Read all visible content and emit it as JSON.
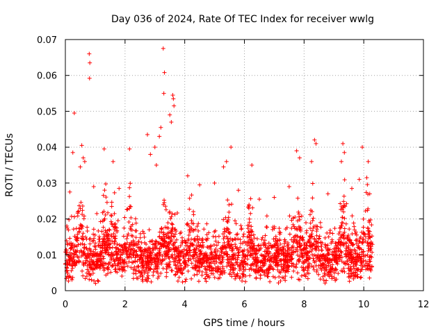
{
  "chart_data": {
    "type": "scatter",
    "title": "Day 036 of 2024, Rate Of TEC Index for receiver wwlg",
    "xlabel": "GPS time / hours",
    "ylabel": "ROTI / TECUs",
    "xlim": [
      0,
      12
    ],
    "ylim": [
      0,
      0.07
    ],
    "x_ticks": [
      "0",
      "2",
      "4",
      "6",
      "8",
      "10",
      "12"
    ],
    "y_ticks": [
      "0",
      "0.01",
      "0.02",
      "0.03",
      "0.04",
      "0.05",
      "0.06",
      "0.07"
    ],
    "grid": true,
    "marker": "+",
    "series": [
      {
        "name": "ROTI",
        "color": "#ff0000",
        "points": [
          [
            0.8,
            0.066
          ],
          [
            0.82,
            0.0635
          ],
          [
            0.81,
            0.0592
          ],
          [
            0.3,
            0.0495
          ],
          [
            3.28,
            0.0675
          ],
          [
            3.32,
            0.0608
          ],
          [
            3.3,
            0.055
          ],
          [
            3.6,
            0.0545
          ],
          [
            3.62,
            0.0535
          ],
          [
            3.64,
            0.0515
          ],
          [
            3.5,
            0.049
          ],
          [
            3.55,
            0.047
          ],
          [
            3.2,
            0.0455
          ],
          [
            3.15,
            0.043
          ],
          [
            2.75,
            0.0435
          ],
          [
            3.0,
            0.04
          ],
          [
            0.55,
            0.0405
          ],
          [
            0.6,
            0.037
          ],
          [
            0.65,
            0.036
          ],
          [
            0.5,
            0.0345
          ],
          [
            0.25,
            0.0385
          ],
          [
            1.3,
            0.0395
          ],
          [
            1.6,
            0.036
          ],
          [
            2.15,
            0.0395
          ],
          [
            5.55,
            0.04
          ],
          [
            5.4,
            0.036
          ],
          [
            5.3,
            0.0345
          ],
          [
            6.25,
            0.035
          ],
          [
            7.75,
            0.039
          ],
          [
            7.85,
            0.037
          ],
          [
            8.35,
            0.042
          ],
          [
            8.4,
            0.041
          ],
          [
            8.25,
            0.036
          ],
          [
            9.3,
            0.041
          ],
          [
            9.35,
            0.0385
          ],
          [
            9.25,
            0.036
          ],
          [
            9.95,
            0.04
          ],
          [
            10.15,
            0.036
          ],
          [
            10.1,
            0.0315
          ],
          [
            9.85,
            0.031
          ],
          [
            4.1,
            0.032
          ],
          [
            3.05,
            0.035
          ],
          [
            2.85,
            0.038
          ],
          [
            0.15,
            0.0275
          ],
          [
            0.95,
            0.029
          ],
          [
            1.8,
            0.0285
          ],
          [
            4.5,
            0.0295
          ],
          [
            5.0,
            0.03
          ],
          [
            5.8,
            0.028
          ],
          [
            6.5,
            0.0255
          ],
          [
            7.0,
            0.026
          ],
          [
            7.5,
            0.029
          ],
          [
            8.8,
            0.027
          ],
          [
            9.6,
            0.0285
          ],
          [
            10.2,
            0.027
          ],
          [
            0.05,
            0.018
          ]
        ]
      }
    ],
    "seed": 36,
    "background_profile": {
      "x_range": [
        0.0,
        10.3
      ],
      "n_points": 2600,
      "baseline": 0.0085,
      "spread": 0.0075,
      "floor": 0.0018,
      "burst_centers_hours": [
        0.5,
        1.3,
        1.6,
        2.15,
        3.3,
        3.6,
        4.2,
        5.4,
        6.2,
        7.8,
        8.3,
        9.3,
        10.1
      ],
      "burst_strength": 0.011
    }
  }
}
